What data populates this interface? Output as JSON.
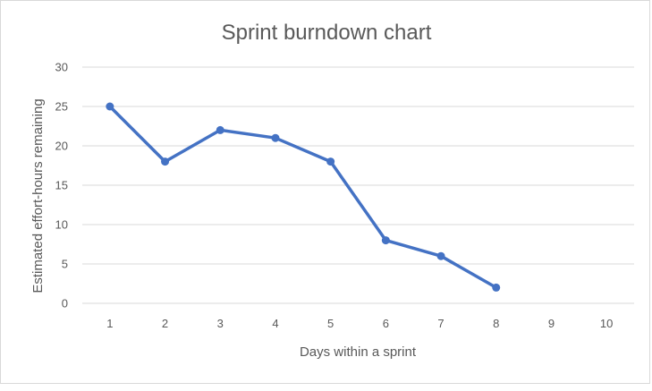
{
  "chart_data": {
    "type": "line",
    "title": "Sprint burndown chart",
    "xlabel": "Days within a sprint",
    "ylabel": "Estimated effort-hours remaining",
    "categories": [
      "1",
      "2",
      "3",
      "4",
      "5",
      "6",
      "7",
      "8",
      "9",
      "10"
    ],
    "y_ticks": [
      "0",
      "5",
      "10",
      "15",
      "20",
      "25",
      "30"
    ],
    "ylim": [
      0,
      30
    ],
    "grid": true,
    "legend": "none",
    "series": [
      {
        "name": "Estimated effort-hours remaining",
        "values": [
          25,
          18,
          22,
          21,
          18,
          8,
          6,
          2,
          null,
          null
        ]
      }
    ],
    "colors": {
      "series": "#4472c4",
      "grid": "#d9d9d9",
      "text": "#595959"
    }
  }
}
